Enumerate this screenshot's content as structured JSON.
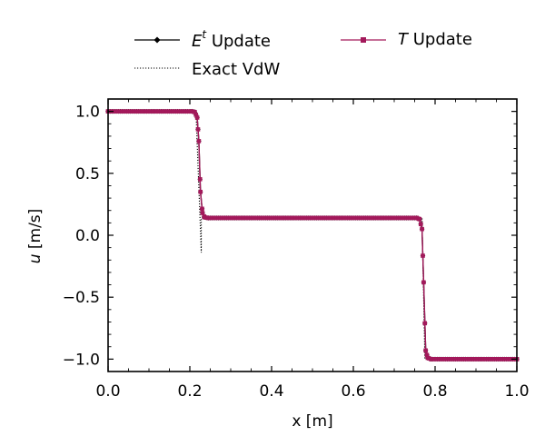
{
  "chart_data": {
    "type": "line",
    "xlabel": "x [m]",
    "ylabel_var": "u",
    "ylabel_unit": " [m/s]",
    "xlim": [
      0.0,
      1.0
    ],
    "ylim": [
      -1.1,
      1.1
    ],
    "x_ticks": [
      0.0,
      0.2,
      0.4,
      0.6,
      0.8,
      1.0
    ],
    "x_tick_labels": [
      "0.0",
      "0.2",
      "0.4",
      "0.6",
      "0.8",
      "1.0"
    ],
    "y_ticks": [
      1.0,
      0.5,
      0.0,
      -0.5,
      -1.0
    ],
    "y_tick_labels": [
      "1.0",
      "0.5",
      "0.0",
      "−0.5",
      "−1.0"
    ],
    "grid": false,
    "legend_position": "top, above plot",
    "legend": {
      "et_base": "E",
      "et_sup": "t",
      "et_rest": " Update",
      "exact": "Exact VdW",
      "t_italic": "T",
      "t_rest": " Update"
    },
    "series": [
      {
        "name": "E^t Update",
        "color": "#000000",
        "marker": "diamond",
        "points": [
          [
            0.0,
            1.0
          ],
          [
            0.205,
            1.0
          ],
          [
            0.212,
            0.995
          ],
          [
            0.218,
            0.95
          ],
          [
            0.222,
            0.76
          ],
          [
            0.226,
            0.35
          ],
          [
            0.231,
            0.18
          ],
          [
            0.236,
            0.145
          ],
          [
            0.245,
            0.14
          ],
          [
            0.755,
            0.14
          ],
          [
            0.762,
            0.13
          ],
          [
            0.768,
            0.05
          ],
          [
            0.772,
            -0.38
          ],
          [
            0.777,
            -0.93
          ],
          [
            0.782,
            -0.99
          ],
          [
            0.79,
            -1.0
          ],
          [
            1.0,
            -1.0
          ]
        ]
      },
      {
        "name": "T Update",
        "color": "#a3195b",
        "marker": "square",
        "points": [
          [
            0.0,
            1.0
          ],
          [
            0.205,
            1.0
          ],
          [
            0.212,
            0.995
          ],
          [
            0.218,
            0.95
          ],
          [
            0.222,
            0.76
          ],
          [
            0.226,
            0.35
          ],
          [
            0.231,
            0.18
          ],
          [
            0.236,
            0.145
          ],
          [
            0.245,
            0.14
          ],
          [
            0.755,
            0.14
          ],
          [
            0.762,
            0.13
          ],
          [
            0.768,
            0.05
          ],
          [
            0.772,
            -0.38
          ],
          [
            0.777,
            -0.93
          ],
          [
            0.782,
            -0.99
          ],
          [
            0.79,
            -1.0
          ],
          [
            1.0,
            -1.0
          ]
        ]
      },
      {
        "name": "Exact VdW",
        "color": "#000000",
        "style": "dotted",
        "points": [
          [
            0.0,
            1.0
          ],
          [
            0.215,
            1.0
          ],
          [
            0.228,
            -0.14
          ],
          [
            0.228,
            0.14
          ],
          [
            0.768,
            0.14
          ],
          [
            0.775,
            -1.0
          ],
          [
            1.0,
            -1.0
          ]
        ]
      }
    ]
  },
  "colors": {
    "t_update": "#a3195b",
    "et_update": "#000000",
    "axes": "#000000"
  }
}
